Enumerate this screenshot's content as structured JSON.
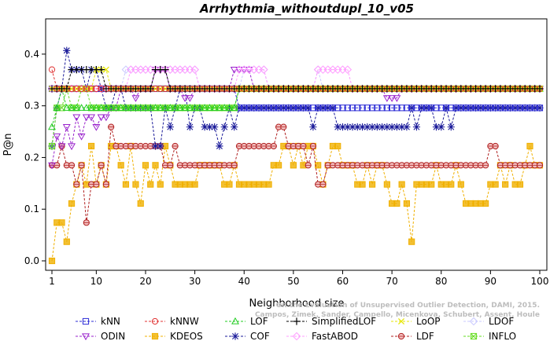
{
  "chart_data": {
    "type": "line",
    "title": "Arrhythmia_withoutdupl_10_v05",
    "xlabel": "Neighborhood size",
    "ylabel": "P@n",
    "xlim": [
      0,
      100
    ],
    "ylim": [
      0,
      0.45
    ],
    "xticks": [
      1,
      10,
      20,
      30,
      40,
      50,
      60,
      70,
      80,
      90,
      100
    ],
    "yticks": [
      0.0,
      0.1,
      0.2,
      0.3,
      0.4
    ],
    "ytick_labels": [
      "0.0",
      "0.1",
      "0.2",
      "0.3",
      "0.4"
    ],
    "grid": false,
    "legend_position": "bottom",
    "watermark": [
      "Campos, Zimek, Sander, Campello, Micenkova, Schubert, Assent, Houle",
      "On the Evaluation of Unsupervised Outlier Detection, DAMI, 2015."
    ],
    "series": [
      {
        "name": "kNN",
        "color": "#2b2bd6",
        "marker": "square",
        "segments": [
          [
            1,
            0.333
          ],
          [
            38,
            0.333
          ],
          [
            39,
            0.296
          ],
          [
            100,
            0.296
          ]
        ]
      },
      {
        "name": "kNNW",
        "color": "#e03030",
        "marker": "circle",
        "segments": [
          [
            1,
            0.37
          ],
          [
            2,
            0.333
          ],
          [
            100,
            0.333
          ]
        ]
      },
      {
        "name": "LOF",
        "color": "#22cc22",
        "marker": "triangle-up",
        "segments": [
          [
            1,
            0.259
          ],
          [
            2,
            0.296
          ],
          [
            3,
            0.333
          ],
          [
            4,
            0.296
          ],
          [
            38,
            0.296
          ],
          [
            39,
            0.333
          ],
          [
            100,
            0.333
          ]
        ]
      },
      {
        "name": "SimplifiedLOF",
        "color": "#000000",
        "marker": "plus",
        "segments": [
          [
            1,
            0.333
          ],
          [
            5,
            0.37
          ],
          [
            12,
            0.333
          ],
          [
            22,
            0.37
          ],
          [
            25,
            0.333
          ],
          [
            100,
            0.333
          ]
        ]
      },
      {
        "name": "LoOP",
        "color": "#e6e600",
        "marker": "x",
        "segments": [
          [
            1,
            0.333
          ],
          [
            10,
            0.37
          ],
          [
            13,
            0.333
          ],
          [
            100,
            0.333
          ]
        ]
      },
      {
        "name": "LDOF",
        "color": "#c8c8ff",
        "marker": "diamond",
        "segments": [
          [
            1,
            0.333
          ],
          [
            14,
            0.333
          ],
          [
            16,
            0.37
          ],
          [
            30,
            0.37
          ],
          [
            31,
            0.333
          ],
          [
            40,
            0.37
          ],
          [
            45,
            0.333
          ],
          [
            55,
            0.37
          ],
          [
            56,
            0.333
          ],
          [
            100,
            0.333
          ]
        ]
      },
      {
        "name": "ODIN",
        "color": "#9922cc",
        "marker": "triangle-down",
        "segments": [
          [
            1,
            0.185
          ],
          [
            2,
            0.241
          ],
          [
            3,
            0.222
          ],
          [
            4,
            0.259
          ],
          [
            5,
            0.222
          ],
          [
            6,
            0.278
          ],
          [
            7,
            0.241
          ],
          [
            8,
            0.278
          ],
          [
            10,
            0.259
          ],
          [
            11,
            0.278
          ],
          [
            13,
            0.296
          ],
          [
            15,
            0.333
          ],
          [
            16,
            0.333
          ],
          [
            18,
            0.315
          ],
          [
            19,
            0.333
          ],
          [
            22,
            0.37
          ],
          [
            25,
            0.333
          ],
          [
            28,
            0.315
          ],
          [
            30,
            0.333
          ],
          [
            35,
            0.333
          ],
          [
            37,
            0.333
          ],
          [
            38,
            0.37
          ],
          [
            41,
            0.37
          ],
          [
            42,
            0.333
          ],
          [
            68,
            0.333
          ],
          [
            69,
            0.315
          ],
          [
            71,
            0.315
          ],
          [
            72,
            0.333
          ],
          [
            100,
            0.333
          ]
        ]
      },
      {
        "name": "KDEOS",
        "color": "#f0b000",
        "marker": "square-filled",
        "segments": [
          [
            1,
            0.0
          ],
          [
            2,
            0.074
          ],
          [
            3,
            0.074
          ],
          [
            4,
            0.037
          ],
          [
            5,
            0.111
          ],
          [
            6,
            0.148
          ],
          [
            7,
            0.185
          ],
          [
            8,
            0.148
          ],
          [
            9,
            0.222
          ],
          [
            10,
            0.148
          ],
          [
            11,
            0.185
          ],
          [
            12,
            0.148
          ],
          [
            13,
            0.222
          ],
          [
            15,
            0.185
          ],
          [
            16,
            0.148
          ],
          [
            17,
            0.222
          ],
          [
            18,
            0.148
          ],
          [
            19,
            0.111
          ],
          [
            20,
            0.185
          ],
          [
            21,
            0.148
          ],
          [
            22,
            0.185
          ],
          [
            23,
            0.148
          ],
          [
            24,
            0.222
          ],
          [
            25,
            0.185
          ],
          [
            26,
            0.148
          ],
          [
            30,
            0.148
          ],
          [
            31,
            0.185
          ],
          [
            35,
            0.185
          ],
          [
            36,
            0.148
          ],
          [
            38,
            0.185
          ],
          [
            39,
            0.148
          ],
          [
            45,
            0.148
          ],
          [
            46,
            0.185
          ],
          [
            47,
            0.185
          ],
          [
            48,
            0.222
          ],
          [
            50,
            0.185
          ],
          [
            51,
            0.222
          ],
          [
            52,
            0.185
          ],
          [
            53,
            0.222
          ],
          [
            55,
            0.185
          ],
          [
            56,
            0.148
          ],
          [
            57,
            0.185
          ],
          [
            58,
            0.222
          ],
          [
            60,
            0.185
          ],
          [
            63,
            0.148
          ],
          [
            65,
            0.185
          ],
          [
            66,
            0.148
          ],
          [
            67,
            0.185
          ],
          [
            69,
            0.148
          ],
          [
            70,
            0.111
          ],
          [
            72,
            0.148
          ],
          [
            73,
            0.111
          ],
          [
            74,
            0.037
          ],
          [
            75,
            0.148
          ],
          [
            77,
            0.148
          ],
          [
            79,
            0.185
          ],
          [
            80,
            0.148
          ],
          [
            82,
            0.148
          ],
          [
            83,
            0.185
          ],
          [
            84,
            0.148
          ],
          [
            85,
            0.111
          ],
          [
            89,
            0.111
          ],
          [
            90,
            0.148
          ],
          [
            92,
            0.185
          ],
          [
            93,
            0.148
          ],
          [
            94,
            0.185
          ],
          [
            95,
            0.148
          ],
          [
            97,
            0.185
          ],
          [
            98,
            0.222
          ],
          [
            99,
            0.185
          ],
          [
            100,
            0.185
          ]
        ]
      },
      {
        "name": "COF",
        "color": "#1a1a99",
        "marker": "asterisk",
        "segments": [
          [
            1,
            0.222
          ],
          [
            2,
            0.296
          ],
          [
            3,
            0.333
          ],
          [
            4,
            0.407
          ],
          [
            5,
            0.37
          ],
          [
            8,
            0.333
          ],
          [
            9,
            0.37
          ],
          [
            11,
            0.333
          ],
          [
            12,
            0.296
          ],
          [
            14,
            0.333
          ],
          [
            16,
            0.296
          ],
          [
            21,
            0.296
          ],
          [
            22,
            0.222
          ],
          [
            24,
            0.296
          ],
          [
            25,
            0.259
          ],
          [
            26,
            0.296
          ],
          [
            27,
            0.333
          ],
          [
            29,
            0.259
          ],
          [
            30,
            0.296
          ],
          [
            32,
            0.259
          ],
          [
            34,
            0.259
          ],
          [
            35,
            0.222
          ],
          [
            36,
            0.259
          ],
          [
            37,
            0.296
          ],
          [
            38,
            0.259
          ],
          [
            39,
            0.296
          ],
          [
            53,
            0.296
          ],
          [
            54,
            0.259
          ],
          [
            55,
            0.296
          ],
          [
            58,
            0.296
          ],
          [
            59,
            0.259
          ],
          [
            73,
            0.259
          ],
          [
            74,
            0.296
          ],
          [
            75,
            0.259
          ],
          [
            76,
            0.296
          ],
          [
            78,
            0.296
          ],
          [
            79,
            0.259
          ],
          [
            80,
            0.259
          ],
          [
            81,
            0.296
          ],
          [
            82,
            0.259
          ],
          [
            83,
            0.296
          ],
          [
            100,
            0.296
          ]
        ]
      },
      {
        "name": "FastABOD",
        "color": "#ff9cff",
        "marker": "diamond",
        "segments": [
          [
            1,
            0.333
          ],
          [
            15,
            0.333
          ],
          [
            17,
            0.37
          ],
          [
            30,
            0.37
          ],
          [
            31,
            0.333
          ],
          [
            38,
            0.333
          ],
          [
            39,
            0.37
          ],
          [
            45,
            0.333
          ],
          [
            54,
            0.333
          ],
          [
            55,
            0.37
          ],
          [
            61,
            0.37
          ],
          [
            62,
            0.333
          ],
          [
            100,
            0.333
          ]
        ]
      },
      {
        "name": "LDF",
        "color": "#b02020",
        "marker": "circle-filled",
        "segments": [
          [
            1,
            0.185
          ],
          [
            2,
            0.185
          ],
          [
            3,
            0.222
          ],
          [
            4,
            0.185
          ],
          [
            5,
            0.185
          ],
          [
            6,
            0.148
          ],
          [
            7,
            0.185
          ],
          [
            8,
            0.074
          ],
          [
            9,
            0.148
          ],
          [
            10,
            0.148
          ],
          [
            11,
            0.185
          ],
          [
            12,
            0.148
          ],
          [
            13,
            0.259
          ],
          [
            14,
            0.222
          ],
          [
            23,
            0.222
          ],
          [
            24,
            0.185
          ],
          [
            26,
            0.222
          ],
          [
            27,
            0.185
          ],
          [
            38,
            0.185
          ],
          [
            39,
            0.222
          ],
          [
            46,
            0.222
          ],
          [
            47,
            0.259
          ],
          [
            48,
            0.259
          ],
          [
            49,
            0.222
          ],
          [
            52,
            0.222
          ],
          [
            53,
            0.185
          ],
          [
            54,
            0.222
          ],
          [
            55,
            0.148
          ],
          [
            56,
            0.148
          ],
          [
            57,
            0.185
          ],
          [
            89,
            0.185
          ],
          [
            90,
            0.222
          ],
          [
            91,
            0.222
          ],
          [
            92,
            0.185
          ],
          [
            100,
            0.185
          ]
        ]
      },
      {
        "name": "INFLO",
        "color": "#66dd22",
        "marker": "box-x",
        "segments": [
          [
            1,
            0.222
          ],
          [
            2,
            0.296
          ],
          [
            3,
            0.296
          ],
          [
            4,
            0.333
          ],
          [
            5,
            0.296
          ],
          [
            6,
            0.296
          ],
          [
            7,
            0.333
          ],
          [
            9,
            0.296
          ],
          [
            38,
            0.296
          ],
          [
            39,
            0.333
          ],
          [
            100,
            0.333
          ]
        ]
      }
    ]
  }
}
